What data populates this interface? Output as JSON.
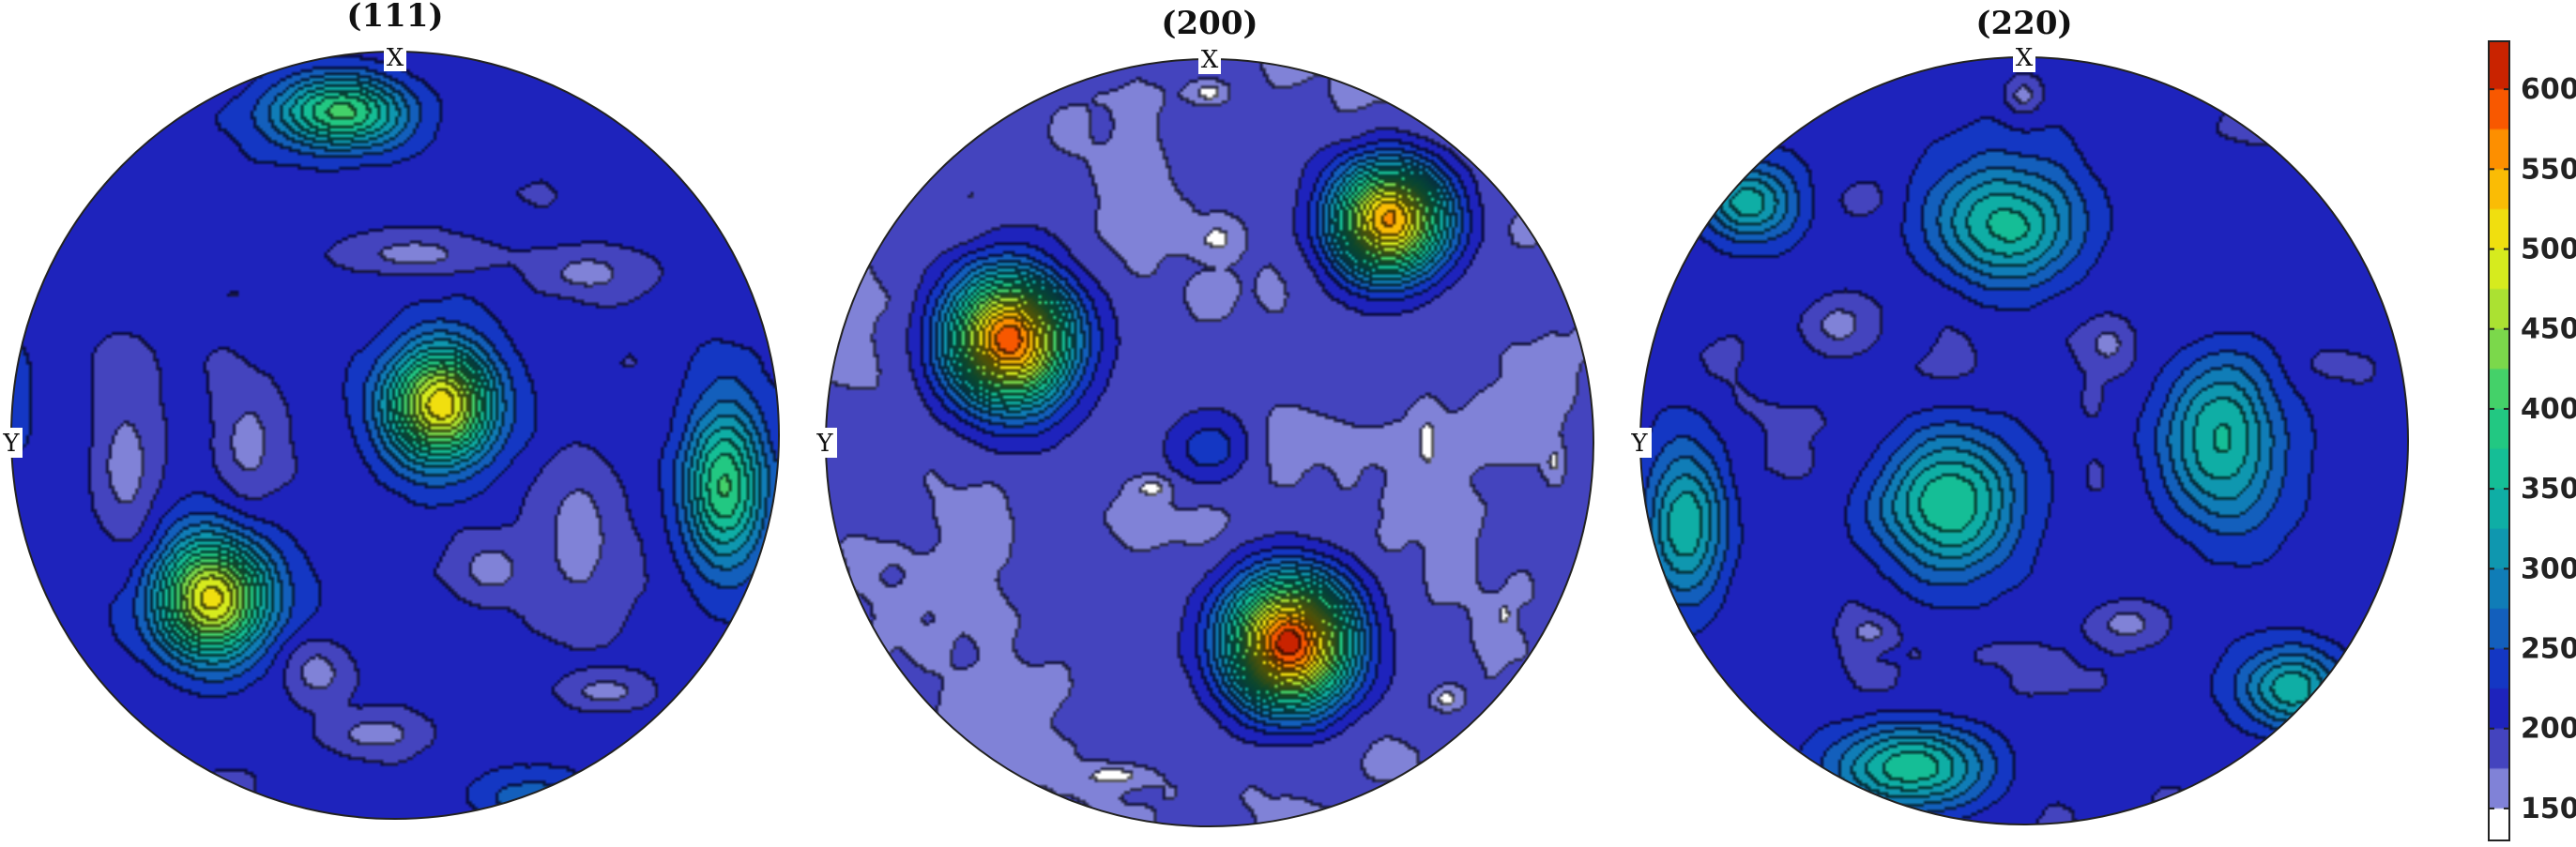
{
  "chart_data": {
    "type": "heatmap",
    "kind": "pole-figure",
    "panels": [
      {
        "title": "(111)",
        "top_label": "X",
        "left_label": "Y",
        "background_level": 210,
        "peaks": [
          {
            "label": "upper-left rim",
            "u": -0.14,
            "v": -0.84,
            "value": 420,
            "su": 0.16,
            "sv": 0.09
          },
          {
            "label": "center",
            "u": 0.12,
            "v": -0.08,
            "value": 520,
            "su": 0.13,
            "sv": 0.14
          },
          {
            "label": "lower-left",
            "u": -0.48,
            "v": 0.43,
            "value": 510,
            "su": 0.14,
            "sv": 0.15
          },
          {
            "label": "right rim",
            "u": 0.86,
            "v": 0.13,
            "value": 410,
            "su": 0.1,
            "sv": 0.2
          },
          {
            "label": "left rim",
            "u": -0.98,
            "v": -0.08,
            "value": 240,
            "su": 0.06,
            "sv": 0.2
          },
          {
            "label": "bottom rim",
            "u": 0.36,
            "v": 0.95,
            "value": 270,
            "su": 0.14,
            "sv": 0.06
          }
        ],
        "low_regions": [
          {
            "u": -0.7,
            "v": 0.08,
            "value": 165,
            "su": 0.1,
            "sv": 0.25
          },
          {
            "u": -0.38,
            "v": 0.02,
            "value": 165,
            "su": 0.1,
            "sv": 0.18
          },
          {
            "u": 0.05,
            "v": -0.47,
            "value": 165,
            "su": 0.2,
            "sv": 0.06
          },
          {
            "u": 0.5,
            "v": -0.42,
            "value": 165,
            "su": 0.15,
            "sv": 0.07
          },
          {
            "u": 0.48,
            "v": 0.26,
            "value": 165,
            "su": 0.13,
            "sv": 0.25
          },
          {
            "u": 0.25,
            "v": 0.35,
            "value": 165,
            "su": 0.12,
            "sv": 0.1
          },
          {
            "u": -0.2,
            "v": 0.62,
            "value": 165,
            "su": 0.1,
            "sv": 0.1
          },
          {
            "u": -0.05,
            "v": 0.78,
            "value": 165,
            "su": 0.15,
            "sv": 0.06
          },
          {
            "u": 0.55,
            "v": 0.67,
            "value": 165,
            "su": 0.12,
            "sv": 0.05
          }
        ]
      },
      {
        "title": "(200)",
        "top_label": "X",
        "left_label": "Y",
        "background_level": 178,
        "peaks": [
          {
            "label": "upper-left",
            "u": -0.52,
            "v": -0.27,
            "value": 590,
            "su": 0.15,
            "sv": 0.16
          },
          {
            "label": "upper-right",
            "u": 0.47,
            "v": -0.58,
            "value": 555,
            "su": 0.14,
            "sv": 0.14
          },
          {
            "label": "lower-center",
            "u": 0.21,
            "v": 0.52,
            "value": 610,
            "su": 0.15,
            "sv": 0.16
          },
          {
            "label": "center",
            "u": 0.0,
            "v": 0.02,
            "value": 240,
            "su": 0.1,
            "sv": 0.1
          }
        ],
        "low_regions": [
          {
            "u": 0.0,
            "v": -0.91,
            "value": 138,
            "su": 0.05,
            "sv": 0.03
          },
          {
            "u": 0.02,
            "v": -0.53,
            "value": 138,
            "su": 0.05,
            "sv": 0.04
          },
          {
            "u": -0.15,
            "v": 0.12,
            "value": 138,
            "su": 0.05,
            "sv": 0.03
          },
          {
            "u": 0.57,
            "v": 0.0,
            "value": 138,
            "su": 0.03,
            "sv": 0.08
          },
          {
            "u": 0.9,
            "v": 0.05,
            "value": 138,
            "su": 0.02,
            "sv": 0.04
          },
          {
            "u": 0.62,
            "v": 0.67,
            "value": 138,
            "su": 0.04,
            "sv": 0.03
          },
          {
            "u": 0.77,
            "v": 0.45,
            "value": 138,
            "su": 0.02,
            "sv": 0.03
          },
          {
            "u": -0.25,
            "v": 0.87,
            "value": 138,
            "su": 0.1,
            "sv": 0.03
          },
          {
            "u": -0.97,
            "v": -0.7,
            "value": 138,
            "su": 0.02,
            "sv": 0.02
          }
        ]
      },
      {
        "title": "(220)",
        "top_label": "X",
        "left_label": "Y",
        "background_level": 205,
        "peaks": [
          {
            "label": "upper-center",
            "u": -0.04,
            "v": -0.56,
            "value": 365,
            "su": 0.18,
            "sv": 0.15
          },
          {
            "label": "upper-left rim",
            "u": -0.72,
            "v": -0.62,
            "value": 345,
            "su": 0.12,
            "sv": 0.09
          },
          {
            "label": "center-left",
            "u": -0.19,
            "v": 0.17,
            "value": 380,
            "su": 0.17,
            "sv": 0.16
          },
          {
            "label": "right",
            "u": 0.51,
            "v": 0.0,
            "value": 360,
            "su": 0.15,
            "sv": 0.2
          },
          {
            "label": "left rim",
            "u": -0.88,
            "v": 0.22,
            "value": 345,
            "su": 0.1,
            "sv": 0.2
          },
          {
            "label": "bottom",
            "u": -0.3,
            "v": 0.85,
            "value": 375,
            "su": 0.19,
            "sv": 0.1
          },
          {
            "label": "lower-right rim",
            "u": 0.7,
            "v": 0.65,
            "value": 335,
            "su": 0.12,
            "sv": 0.1
          }
        ],
        "low_regions": [
          {
            "u": 0.27,
            "v": 0.48,
            "value": 165,
            "su": 0.1,
            "sv": 0.06
          },
          {
            "u": -0.48,
            "v": -0.3,
            "value": 165,
            "su": 0.1,
            "sv": 0.08
          },
          {
            "u": 0.22,
            "v": -0.25,
            "value": 165,
            "su": 0.06,
            "sv": 0.06
          },
          {
            "u": -0.4,
            "v": 0.5,
            "value": 165,
            "su": 0.06,
            "sv": 0.04
          },
          {
            "u": 0.0,
            "v": -0.9,
            "value": 165,
            "su": 0.05,
            "sv": 0.05
          }
        ]
      }
    ],
    "colorbar": {
      "min": 130,
      "max": 630,
      "ticks": [
        150,
        200,
        250,
        300,
        350,
        400,
        450,
        500,
        550,
        600
      ],
      "colormap": "parula-jet"
    },
    "contour_levels": [
      150,
      175,
      200,
      225,
      250,
      275,
      300,
      325,
      350,
      375,
      400,
      425,
      450,
      475,
      500,
      525,
      550,
      575,
      600
    ]
  },
  "colors": {
    "outline": "#222222",
    "background": "#ffffff"
  }
}
